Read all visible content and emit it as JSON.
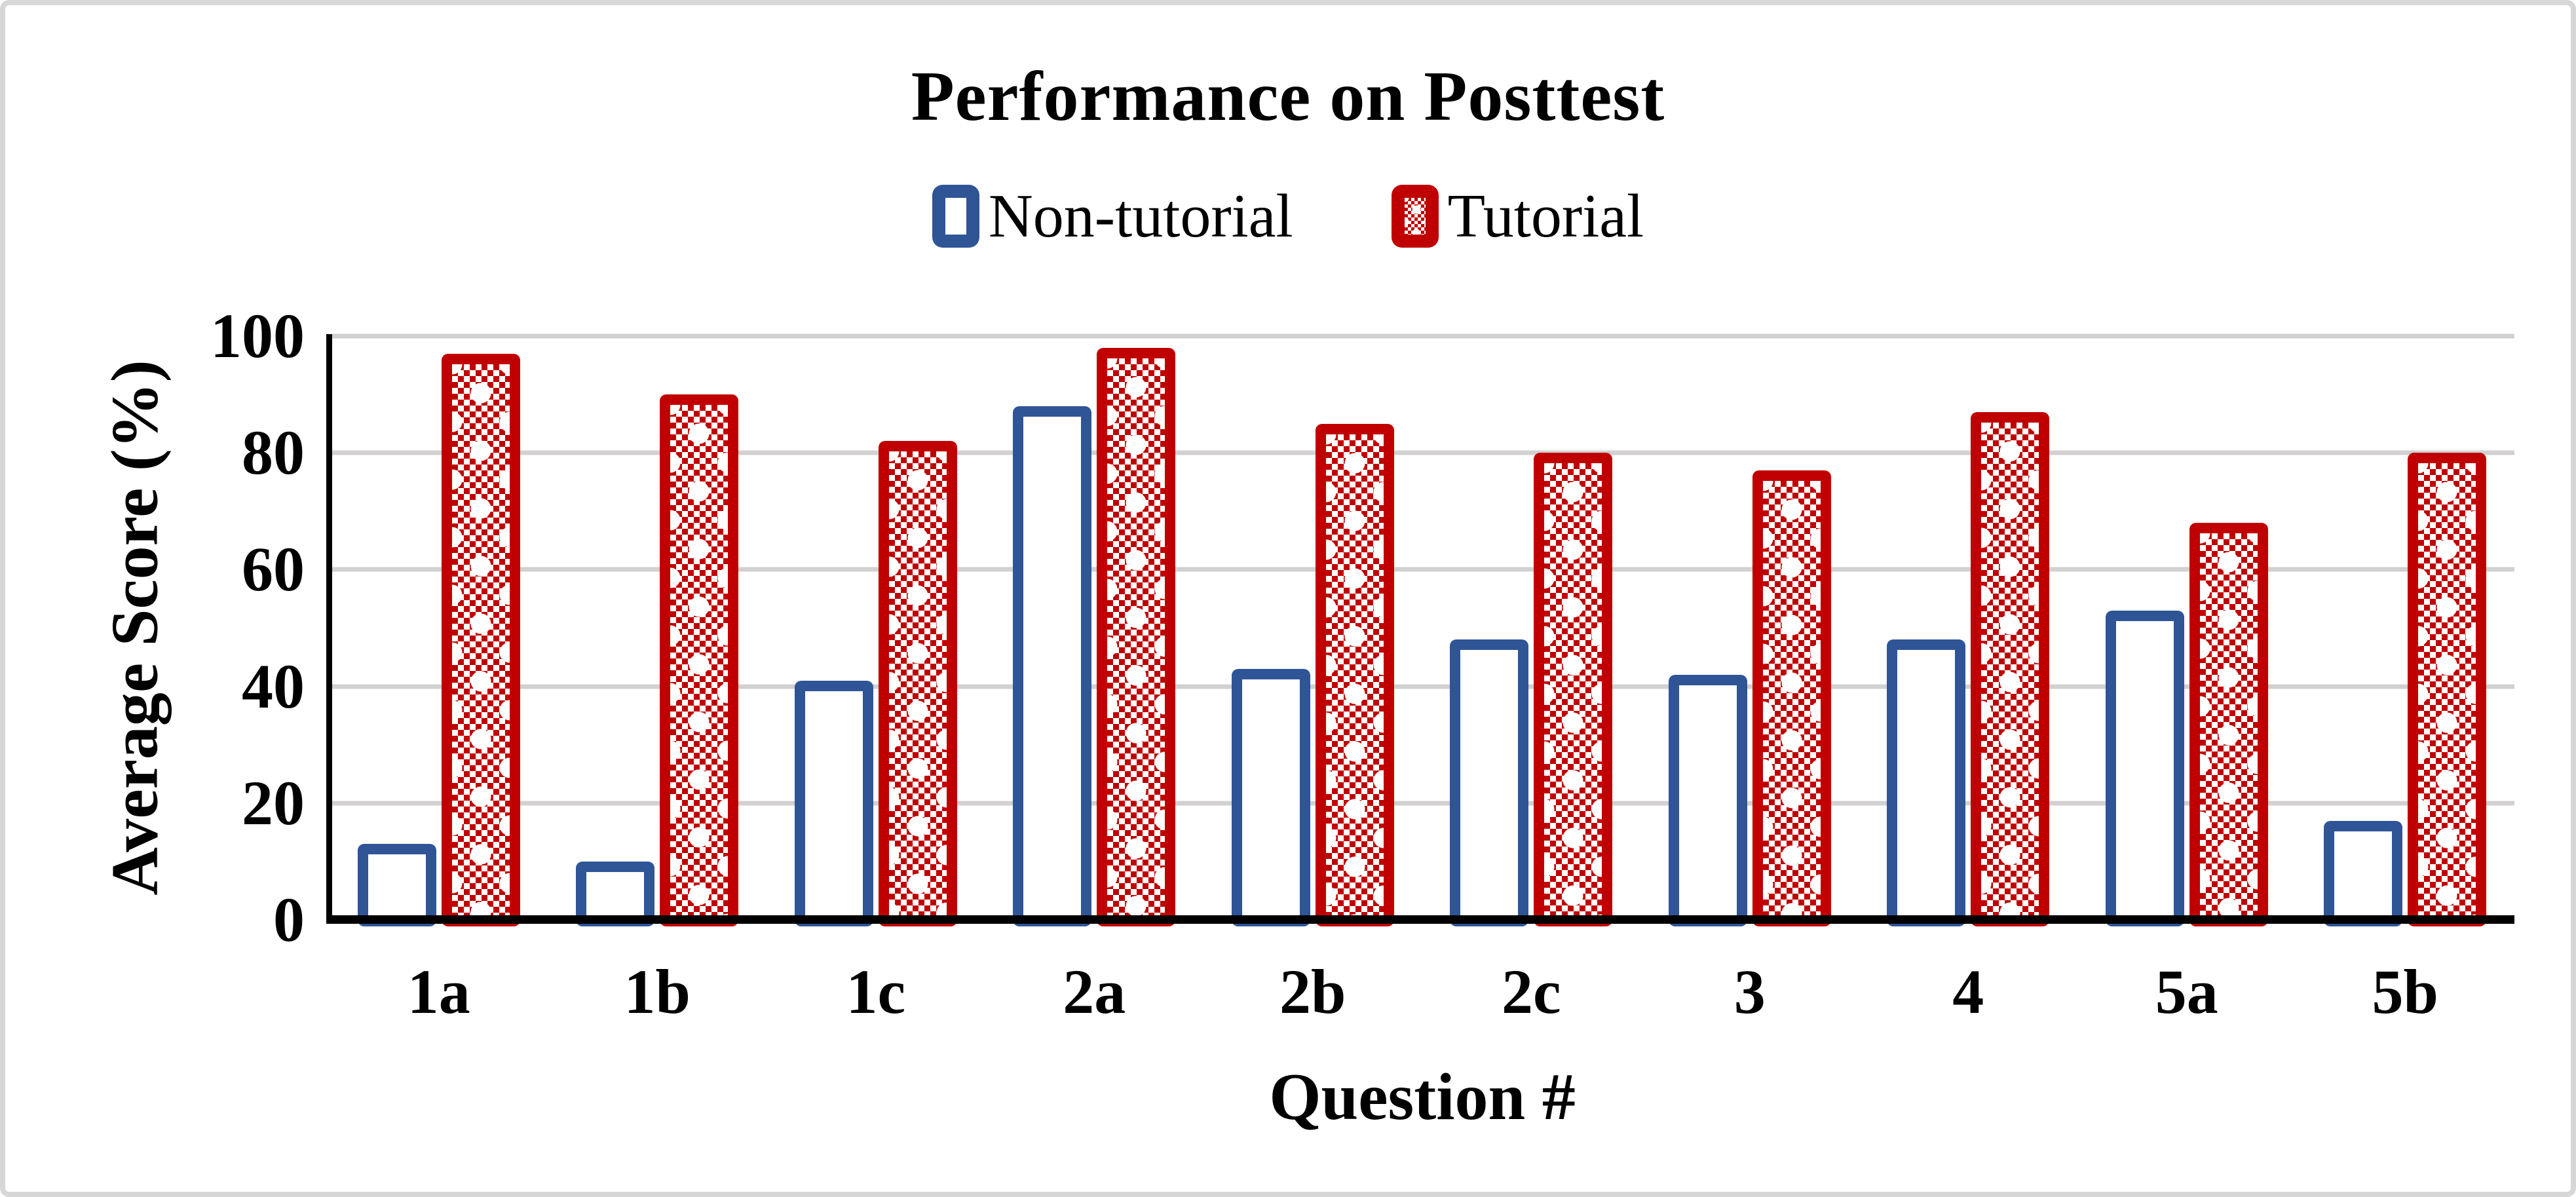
{
  "chart_data": {
    "type": "bar",
    "title": "Performance on Posttest",
    "categories": [
      "1a",
      "1b",
      "1c",
      "2a",
      "2b",
      "2c",
      "3",
      "4",
      "5a",
      "5b"
    ],
    "series": [
      {
        "name": "Non-tutorial",
        "style": "outline",
        "color": "#2f5597",
        "values": [
          13,
          10,
          41,
          88,
          43,
          48,
          42,
          48,
          53,
          17
        ]
      },
      {
        "name": "Tutorial",
        "style": "dotted-pattern",
        "color": "#c00000",
        "values": [
          97,
          90,
          82,
          98,
          85,
          80,
          77,
          87,
          68,
          80
        ]
      }
    ],
    "xlabel": "Question #",
    "ylabel": "Average Score (%)",
    "ylim": [
      0,
      100
    ],
    "yticks": [
      0,
      20,
      40,
      60,
      80,
      100
    ],
    "grid": "horizontal",
    "legend_position": "top-center",
    "colors": {
      "non_tutorial_blue": "#2f5597",
      "tutorial_red": "#c00000",
      "gridline": "#d2d0d0",
      "axis": "#000000",
      "figure_border": "#d7d7d7",
      "background": "#ffffff"
    }
  },
  "legend": {
    "items": [
      {
        "label": "Non-tutorial"
      },
      {
        "label": "Tutorial"
      }
    ]
  }
}
